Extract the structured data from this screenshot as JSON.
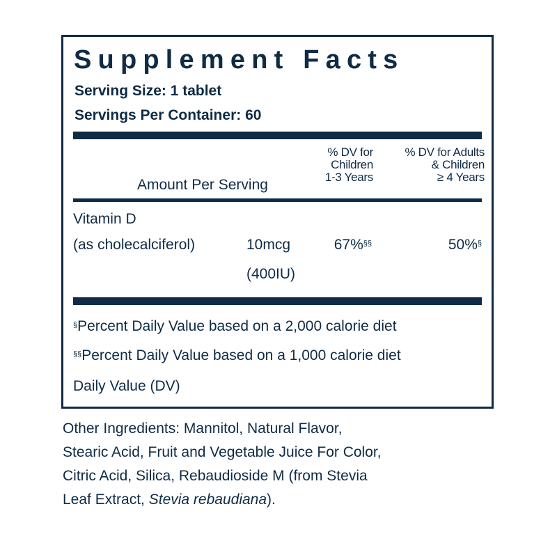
{
  "panel": {
    "title": "Supplement Facts",
    "serving_size": "Serving Size: 1 tablet",
    "servings_per_container": "Servings Per Container: 60"
  },
  "table": {
    "header_amount": "Amount Per Serving",
    "header_dv_children": "% DV for\nChildren\n1-3 Years",
    "header_dv_adults": "% DV for Adults\n& Children\n≥ 4 Years",
    "rows": [
      {
        "name_line1": "Vitamin D",
        "name_line2": "(as cholecalciferol)",
        "amount_line1": "10mcg",
        "amount_line2": "(400IU)",
        "dv_children": "67%",
        "dv_children_mark": "§§",
        "dv_adults": "50%",
        "dv_adults_mark": "§"
      }
    ]
  },
  "footnotes": [
    {
      "mark": "§",
      "text": "Percent Daily Value based on a 2,000 calorie diet"
    },
    {
      "mark": "§§",
      "text": "Percent Daily Value based on a 1,000 calorie diet"
    },
    {
      "mark": "",
      "text": "Daily Value (DV)"
    }
  ],
  "other_ingredients": {
    "line1": "Other Ingredients: Mannitol, Natural Flavor,",
    "line2": "Stearic Acid, Fruit and Vegetable Juice For Color,",
    "line3": "Citric Acid, Silica, Rebaudioside M (from Stevia",
    "line4_start": "Leaf Extract, ",
    "line4_italic": "Stevia rebaudiana",
    "line4_end": ")."
  },
  "colors": {
    "ink": "#0f2b45",
    "background": "#ffffff"
  }
}
